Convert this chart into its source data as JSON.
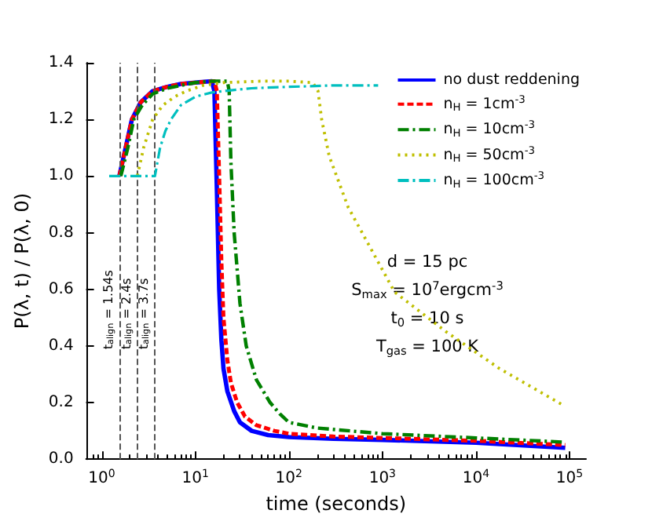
{
  "chart_data": {
    "type": "line",
    "xlabel": "time (seconds)",
    "ylabel": "P(λ, t) / P(λ, 0)",
    "log": "x",
    "xlim": [
      0.68,
      150000
    ],
    "xticks": [
      {
        "value": 1,
        "label": "10$^{0}$"
      },
      {
        "value": 10,
        "label": "10$^{1}$"
      },
      {
        "value": 100,
        "label": "10$^{2}$"
      },
      {
        "value": 1000,
        "label": "10$^{3}$"
      },
      {
        "value": 10000,
        "label": "10$^{4}$"
      },
      {
        "value": 100000,
        "label": "10$^{5}$"
      }
    ],
    "ylim": [
      0,
      1.4
    ],
    "yticks": [
      {
        "value": 0,
        "label": "0.0"
      },
      {
        "value": 0.2,
        "label": "0.2"
      },
      {
        "value": 0.4,
        "label": "0.4"
      },
      {
        "value": 0.6,
        "label": "0.6"
      },
      {
        "value": 0.8,
        "label": "0.8"
      },
      {
        "value": 1,
        "label": "1.0"
      },
      {
        "value": 1.2,
        "label": "1.2"
      },
      {
        "value": 1.4,
        "label": "1.4"
      }
    ],
    "grid": false,
    "legend": "top right",
    "marker": "none",
    "series": [
      {
        "name": "no dust reddening",
        "color": "#0000ff",
        "line_style": "solid",
        "x": [
          1.54,
          1.8,
          2.1,
          2.6,
          3.5,
          5,
          7,
          10,
          15,
          16,
          17,
          18,
          19,
          20,
          22,
          26,
          30,
          40,
          60,
          100,
          300,
          1000,
          10000,
          90000
        ],
        "values": [
          1.0,
          1.1,
          1.2,
          1.26,
          1.3,
          1.315,
          1.325,
          1.33,
          1.335,
          1.3,
          0.95,
          0.6,
          0.42,
          0.32,
          0.24,
          0.17,
          0.13,
          0.1,
          0.085,
          0.078,
          0.072,
          0.068,
          0.058,
          0.04
        ]
      },
      {
        "name": "n$_{H}$ = 1cm$^{-3}$",
        "color": "#ff0000",
        "line_style": "dashed",
        "x": [
          1.54,
          1.8,
          2.1,
          2.6,
          3.5,
          5,
          7,
          10,
          16,
          17,
          18,
          19,
          20,
          22,
          24,
          28,
          34,
          45,
          70,
          100,
          300,
          1000,
          10000,
          90000
        ],
        "values": [
          1.0,
          1.1,
          1.2,
          1.26,
          1.3,
          1.315,
          1.325,
          1.33,
          1.335,
          1.3,
          1.0,
          0.7,
          0.5,
          0.35,
          0.27,
          0.2,
          0.15,
          0.12,
          0.1,
          0.09,
          0.08,
          0.075,
          0.065,
          0.05
        ]
      },
      {
        "name": "n$_{H}$ = 10cm$^{-3}$",
        "color": "#008000",
        "line_style": "dashdot",
        "x": [
          1.6,
          1.9,
          2.2,
          2.7,
          3.5,
          5,
          7,
          10,
          15,
          22,
          23,
          24,
          26,
          30,
          35,
          45,
          63,
          80,
          100,
          200,
          1000,
          10000,
          90000
        ],
        "values": [
          1.0,
          1.1,
          1.2,
          1.25,
          1.29,
          1.31,
          1.32,
          1.33,
          1.335,
          1.335,
          1.3,
          1.05,
          0.8,
          0.55,
          0.4,
          0.28,
          0.2,
          0.16,
          0.13,
          0.11,
          0.09,
          0.075,
          0.06
        ]
      },
      {
        "name": "n$_{H}$ = 50cm$^{-3}$",
        "color": "#bfbf00",
        "line_style": "dotted",
        "x": [
          2.4,
          2.8,
          3.5,
          4.5,
          6,
          8,
          12,
          20,
          50,
          100,
          180,
          205,
          224,
          270,
          430,
          1350,
          4800,
          17800,
          86000
        ],
        "values": [
          1.0,
          1.1,
          1.2,
          1.25,
          1.28,
          1.3,
          1.32,
          1.33,
          1.335,
          1.335,
          1.33,
          1.3,
          1.2,
          1.07,
          0.89,
          0.59,
          0.45,
          0.32,
          0.19
        ]
      },
      {
        "name": "n$_{H}$ = 100cm$^{-3}$",
        "color": "#00bfbf",
        "line_style": "dashdot",
        "x": [
          1.2,
          2,
          3.7,
          4.2,
          4.8,
          5.5,
          7,
          10,
          15,
          20,
          40,
          100,
          300,
          900
        ],
        "values": [
          1.0,
          1.0,
          1.0,
          1.1,
          1.16,
          1.2,
          1.25,
          1.28,
          1.295,
          1.3,
          1.31,
          1.315,
          1.32,
          1.32
        ]
      }
    ],
    "ref_lines": [
      {
        "axis": "x",
        "value": 1.54,
        "label": "t$_{align}$ = 1.54s",
        "color": "#555555",
        "line_style": "dashed"
      },
      {
        "axis": "x",
        "value": 2.4,
        "label": "t$_{align}$ = 2.4s",
        "color": "#555555",
        "line_style": "dashed"
      },
      {
        "axis": "x",
        "value": 3.7,
        "label": "t$_{align}$ = 3.7s",
        "color": "#555555",
        "line_style": "dashed"
      }
    ],
    "annotations": [
      "d = 15 pc",
      "S$_{max}$ = 10$^{7}$ergcm$^{-3}$",
      "t$_{0}$ = 10 s",
      "T$_{gas}$ = 100 K"
    ]
  }
}
